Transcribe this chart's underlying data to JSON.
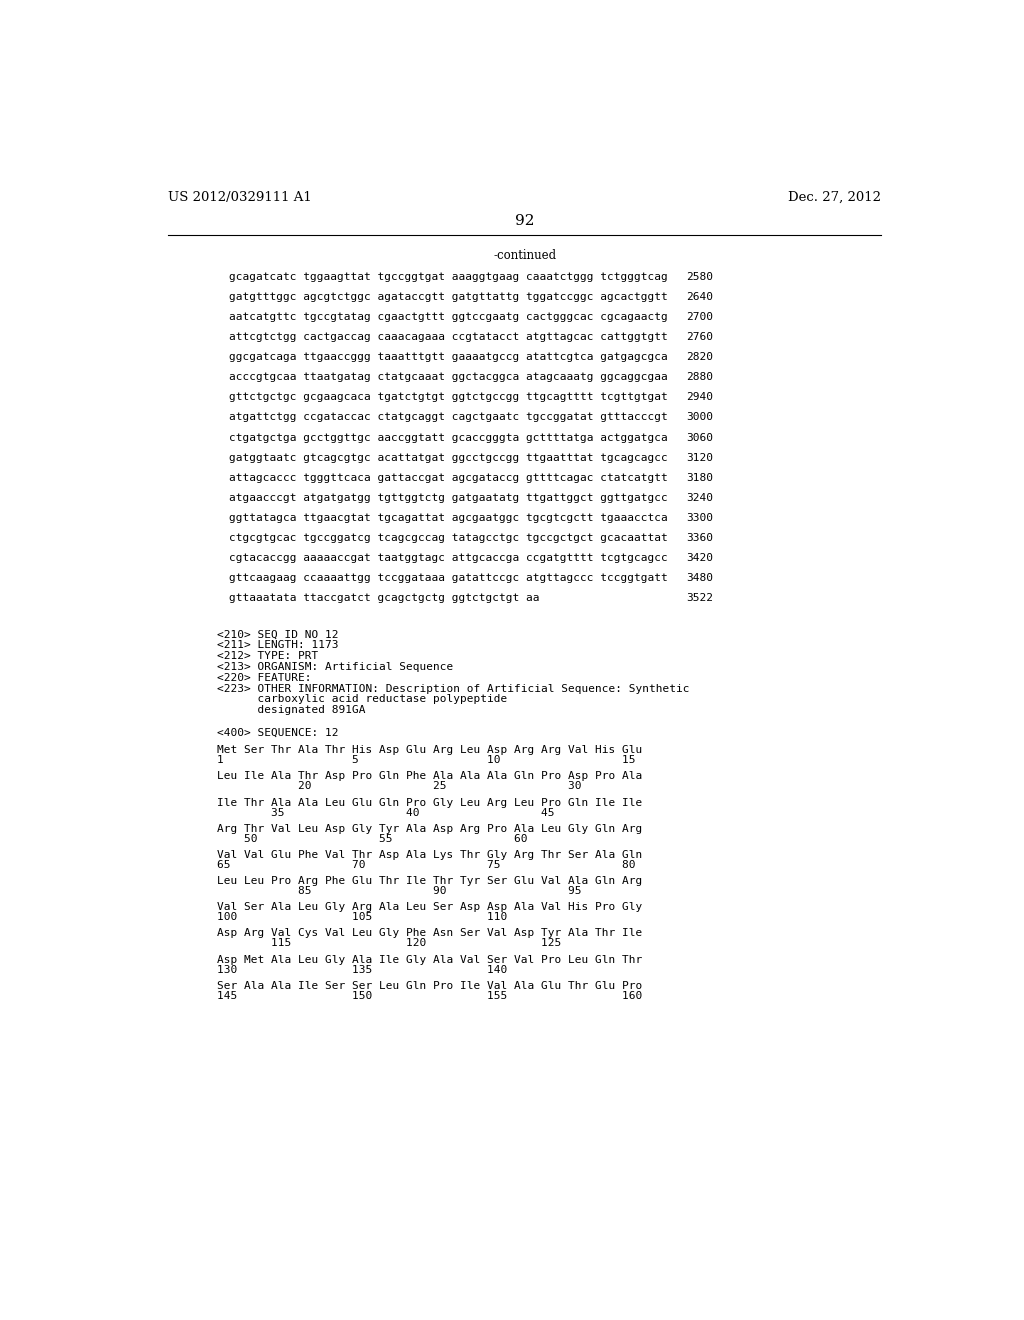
{
  "header_left": "US 2012/0329111 A1",
  "header_right": "Dec. 27, 2012",
  "page_number": "92",
  "continued_label": "-continued",
  "background_color": "#ffffff",
  "sequence_lines": [
    [
      "gcagatcatc tggaagttat tgccggtgat aaaggtgaag caaatctggg tctgggtcag",
      "2580"
    ],
    [
      "gatgtttggc agcgtctggc agataccgtt gatgttattg tggatccggc agcactggtt",
      "2640"
    ],
    [
      "aatcatgttc tgccgtatag cgaactgttt ggtccgaatg cactgggcac cgcagaactg",
      "2700"
    ],
    [
      "attcgtctgg cactgaccag caaacagaaa ccgtatacct atgttagcac cattggtgtt",
      "2760"
    ],
    [
      "ggcgatcaga ttgaaccggg taaatttgtt gaaaatgccg atattcgtca gatgagcgca",
      "2820"
    ],
    [
      "acccgtgcaa ttaatgatag ctatgcaaat ggctacggca atagcaaatg ggcaggcgaa",
      "2880"
    ],
    [
      "gttctgctgc gcgaagcaca tgatctgtgt ggtctgccgg ttgcagtttt tcgttgtgat",
      "2940"
    ],
    [
      "atgattctgg ccgataccac ctatgcaggt cagctgaatc tgccggatat gtttacccgt",
      "3000"
    ],
    [
      "ctgatgctga gcctggttgc aaccggtatt gcaccgggta gcttttatga actggatgca",
      "3060"
    ],
    [
      "gatggtaatc gtcagcgtgc acattatgat ggcctgccgg ttgaatttat tgcagcagcc",
      "3120"
    ],
    [
      "attagcaccc tgggttcaca gattaccgat agcgataccg gttttcagac ctatcatgtt",
      "3180"
    ],
    [
      "atgaacccgt atgatgatgg tgttggtctg gatgaatatg ttgattggct ggttgatgcc",
      "3240"
    ],
    [
      "ggttatagca ttgaacgtat tgcagattat agcgaatggc tgcgtcgctt tgaaacctca",
      "3300"
    ],
    [
      "ctgcgtgcac tgccggatcg tcagcgccag tatagcctgc tgccgctgct gcacaattat",
      "3360"
    ],
    [
      "cgtacaccgg aaaaaccgat taatggtagc attgcaccga ccgatgtttt tcgtgcagcc",
      "3420"
    ],
    [
      "gttcaagaag ccaaaattgg tccggataaa gatattccgc atgttagccc tccggtgatt",
      "3480"
    ],
    [
      "gttaaatata ttaccgatct gcagctgctg ggtctgctgt aa",
      "3522"
    ]
  ],
  "metadata_lines": [
    "<210> SEQ ID NO 12",
    "<211> LENGTH: 1173",
    "<212> TYPE: PRT",
    "<213> ORGANISM: Artificial Sequence",
    "<220> FEATURE:",
    "<223> OTHER INFORMATION: Description of Artificial Sequence: Synthetic",
    "      carboxylic acid reductase polypeptide",
    "      designated 891GA"
  ],
  "sequence_label": "<400> SEQUENCE: 12",
  "protein_lines": [
    {
      "amino": "Met Ser Thr Ala Thr His Asp Glu Arg Leu Asp Arg Arg Val His Glu",
      "numbers": "1                   5                   10                  15"
    },
    {
      "amino": "Leu Ile Ala Thr Asp Pro Gln Phe Ala Ala Ala Gln Pro Asp Pro Ala",
      "numbers": "            20                  25                  30"
    },
    {
      "amino": "Ile Thr Ala Ala Leu Glu Gln Pro Gly Leu Arg Leu Pro Gln Ile Ile",
      "numbers": "        35                  40                  45"
    },
    {
      "amino": "Arg Thr Val Leu Asp Gly Tyr Ala Asp Arg Pro Ala Leu Gly Gln Arg",
      "numbers": "    50                  55                  60"
    },
    {
      "amino": "Val Val Glu Phe Val Thr Asp Ala Lys Thr Gly Arg Thr Ser Ala Gln",
      "numbers": "65                  70                  75                  80"
    },
    {
      "amino": "Leu Leu Pro Arg Phe Glu Thr Ile Thr Tyr Ser Glu Val Ala Gln Arg",
      "numbers": "            85                  90                  95"
    },
    {
      "amino": "Val Ser Ala Leu Gly Arg Ala Leu Ser Asp Asp Ala Val His Pro Gly",
      "numbers": "100                 105                 110"
    },
    {
      "amino": "Asp Arg Val Cys Val Leu Gly Phe Asn Ser Val Asp Tyr Ala Thr Ile",
      "numbers": "        115                 120                 125"
    },
    {
      "amino": "Asp Met Ala Leu Gly Ala Ile Gly Ala Val Ser Val Pro Leu Gln Thr",
      "numbers": "130                 135                 140"
    },
    {
      "amino": "Ser Ala Ala Ile Ser Ser Leu Gln Pro Ile Val Ala Glu Thr Glu Pro",
      "numbers": "145                 150                 155                 160"
    }
  ]
}
